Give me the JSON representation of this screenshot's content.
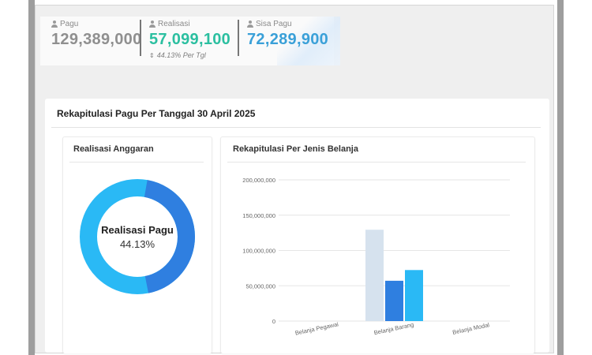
{
  "stats": {
    "pagu": {
      "label": "Pagu",
      "value": "129,389,000",
      "color": "#8f8f8f"
    },
    "realisasi": {
      "label": "Realisasi",
      "value": "57,099,100",
      "color": "#2bbfa0",
      "sub": "44.13% Per Tgl"
    },
    "sisa": {
      "label": "Sisa Pagu",
      "value": "72,289,900",
      "color": "#3aa0d8"
    }
  },
  "recap": {
    "title": "Rekapitulasi Pagu Per Tanggal 30 April 2025"
  },
  "donut": {
    "title": "Realisasi Anggaran",
    "center_title": "Realisasi Pagu",
    "center_value": "44.13%",
    "percent": 44.13,
    "colors": {
      "realized": "#2f7fe0",
      "remaining": "#2ab9f5"
    }
  },
  "chart_title": "Rekapitulasi Per Jenis Belanja",
  "chart_data": {
    "type": "bar",
    "categories": [
      "Belanja Pegawai",
      "Belanja Barang",
      "Belanja Modal"
    ],
    "series": [
      {
        "values": [
          0,
          129389000,
          0
        ],
        "color": "#d6e2ee"
      },
      {
        "values": [
          0,
          57099100,
          0
        ],
        "color": "#2f7fe0"
      },
      {
        "values": [
          0,
          72289900,
          0
        ],
        "color": "#2ab9f5"
      }
    ],
    "yticks": [
      "0",
      "50,000,000",
      "100,000,000",
      "150,000,000",
      "200,000,000"
    ],
    "ylim": [
      0,
      200000000
    ],
    "grid": true
  }
}
